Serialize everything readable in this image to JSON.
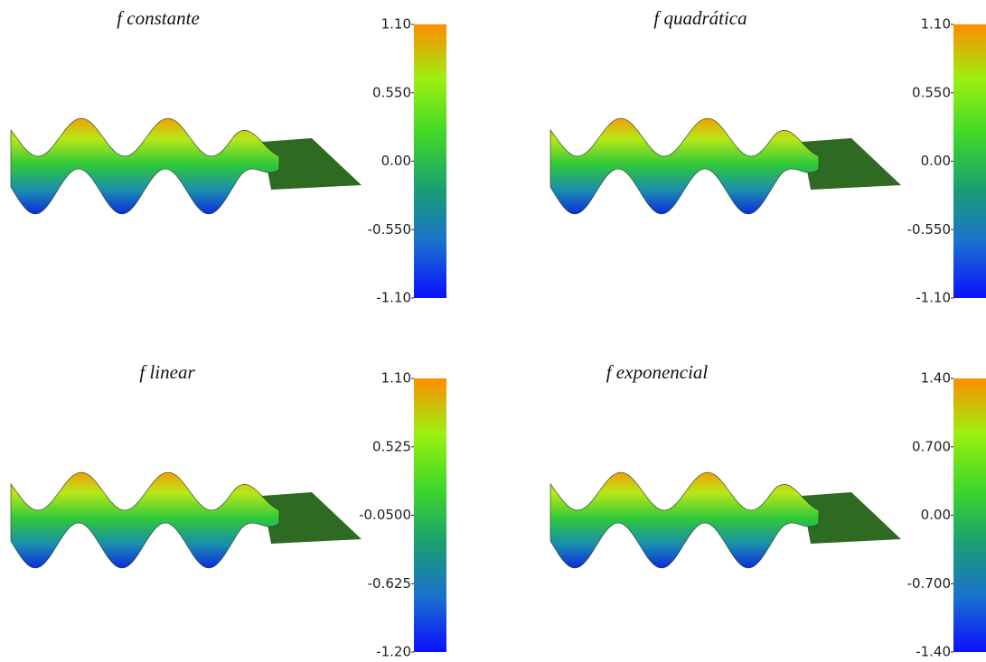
{
  "chart_data": [
    {
      "type": "surface",
      "title": "f constante",
      "colormap": [
        "#0a10ff",
        "#1a70d0",
        "#1aa070",
        "#40d828",
        "#9cf010",
        "#ff8c00"
      ],
      "clim": [
        -1.1,
        1.1
      ],
      "cticks": [
        {
          "value": -1.1,
          "label": "-1.10"
        },
        {
          "value": -0.55,
          "label": "-0.550"
        },
        {
          "value": 0,
          "label": "0.00"
        },
        {
          "value": 0.55,
          "label": "0.550"
        },
        {
          "value": 1.1,
          "label": "1.10"
        }
      ]
    },
    {
      "type": "surface",
      "title": "f quadrática",
      "colormap": [
        "#0a10ff",
        "#1a70d0",
        "#1aa070",
        "#40d828",
        "#9cf010",
        "#ff8c00"
      ],
      "clim": [
        -1.1,
        1.1
      ],
      "cticks": [
        {
          "value": -1.1,
          "label": "-1.10"
        },
        {
          "value": -0.55,
          "label": "-0.550"
        },
        {
          "value": 0,
          "label": "0.00"
        },
        {
          "value": 0.55,
          "label": "0.550"
        },
        {
          "value": 1.1,
          "label": "1.10"
        }
      ]
    },
    {
      "type": "surface",
      "title": "f linear",
      "colormap": [
        "#0a10ff",
        "#1a70d0",
        "#1aa070",
        "#40d828",
        "#9cf010",
        "#ff8c00"
      ],
      "clim": [
        -1.2,
        1.1
      ],
      "cticks": [
        {
          "value": -1.2,
          "label": "-1.20"
        },
        {
          "value": -0.625,
          "label": "-0.625"
        },
        {
          "value": -0.05,
          "label": "-0.0500"
        },
        0.525,
        {
          "value": 1.1,
          "label": "1.10"
        }
      ]
    },
    {
      "type": "surface",
      "title": "f exponencial",
      "colormap": [
        "#0a10ff",
        "#1a70d0",
        "#1aa070",
        "#40d828",
        "#9cf010",
        "#ff8c00"
      ],
      "clim": [
        -1.4,
        1.4
      ],
      "cticks": [
        {
          "value": -1.4,
          "label": "-1.40"
        },
        {
          "value": -0.7,
          "label": "-0.700"
        },
        {
          "value": 0,
          "label": "0.00"
        },
        {
          "value": 0.7,
          "label": "0.700"
        },
        {
          "value": 1.4,
          "label": "1.40"
        }
      ]
    }
  ]
}
